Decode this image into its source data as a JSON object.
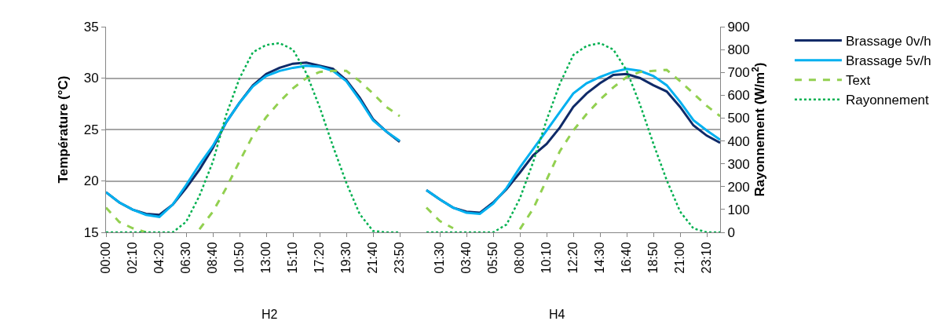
{
  "chart_data": {
    "type": "line",
    "ylabel": "Température (°C)",
    "y2label": "Rayonnement (W/m$^{2}$)",
    "categories": [
      "00:00",
      null,
      "02:10",
      null,
      "04:20",
      null,
      "06:30",
      null,
      "08:40",
      null,
      "10:50",
      null,
      "13:00",
      null,
      "15:10",
      null,
      "17:20",
      null,
      "19:30",
      null,
      "21:40",
      null,
      "23:50",
      null,
      null,
      "01:30",
      null,
      "03:40",
      null,
      "05:50",
      null,
      "08:00",
      null,
      "10:10",
      null,
      "12:20",
      null,
      "14:30",
      null,
      "16:40",
      null,
      "18:50",
      null,
      "21:00",
      null,
      "23:10",
      null
    ],
    "series": [
      {
        "name": "Brassage 0v/h",
        "color": "#0f2a68",
        "line_style": "solid",
        "values": [
          18.9,
          17.9,
          17.2,
          16.8,
          16.7,
          17.7,
          19.3,
          21.1,
          23.2,
          25.7,
          27.6,
          29.3,
          30.4,
          31.0,
          31.4,
          31.5,
          31.2,
          30.9,
          29.8,
          28.1,
          26.0,
          24.8,
          23.8,
          null,
          19.1,
          18.2,
          17.4,
          17.0,
          16.9,
          17.9,
          19.2,
          20.8,
          22.5,
          23.6,
          25.2,
          27.2,
          28.5,
          29.5,
          30.3,
          30.4,
          30.0,
          29.3,
          28.7,
          27.2,
          25.4,
          24.4,
          23.7
        ]
      },
      {
        "name": "Brassage 5v/h",
        "color": "#00b0f0",
        "line_style": "solid",
        "values": [
          18.9,
          17.9,
          17.2,
          16.7,
          16.5,
          17.7,
          19.6,
          21.6,
          23.4,
          25.7,
          27.6,
          29.2,
          30.2,
          30.7,
          31.0,
          31.2,
          31.1,
          30.7,
          29.7,
          27.9,
          25.9,
          24.8,
          23.9,
          null,
          19.1,
          18.2,
          17.4,
          16.9,
          16.8,
          17.8,
          19.3,
          21.3,
          23.1,
          24.9,
          26.7,
          28.5,
          29.5,
          30.1,
          30.6,
          30.9,
          30.7,
          30.2,
          29.3,
          27.7,
          25.9,
          24.9,
          24.0
        ]
      },
      {
        "name": "Text",
        "color": "#92d050",
        "line_style": "dashed",
        "values": [
          17.4,
          16.0,
          15.4,
          15.0,
          null,
          null,
          null,
          15.3,
          17.0,
          19.3,
          21.9,
          24.4,
          26.2,
          27.7,
          29.0,
          30.0,
          30.6,
          30.7,
          30.7,
          29.7,
          28.5,
          27.2,
          26.3,
          null,
          17.4,
          16.1,
          15.4,
          null,
          null,
          null,
          null,
          15.3,
          17.3,
          20.1,
          22.9,
          24.9,
          26.5,
          27.9,
          29.1,
          30.1,
          30.6,
          30.7,
          30.8,
          29.7,
          28.5,
          27.3,
          26.3
        ]
      },
      {
        "name": "Rayonnement",
        "color": "#00b050",
        "line_style": "dotted",
        "axis": "y2",
        "values": [
          0,
          0,
          0,
          0,
          0,
          0,
          46,
          160,
          308,
          514,
          674,
          788,
          820,
          828,
          800,
          697,
          548,
          377,
          217,
          80,
          6,
          0,
          0,
          null,
          0,
          0,
          0,
          0,
          0,
          0,
          34,
          148,
          308,
          491,
          651,
          776,
          816,
          828,
          800,
          708,
          559,
          388,
          228,
          91,
          17,
          0,
          0
        ]
      }
    ],
    "ylim": [
      15,
      35
    ],
    "yticks": [
      15,
      20,
      25,
      30,
      35
    ],
    "y2lim": [
      0,
      900
    ],
    "y2ticks": [
      0,
      100,
      200,
      300,
      400,
      500,
      600,
      700,
      800,
      900
    ],
    "grid": "y",
    "legend": "right",
    "marker": "none",
    "annotations": [
      "H2",
      "H4"
    ]
  }
}
